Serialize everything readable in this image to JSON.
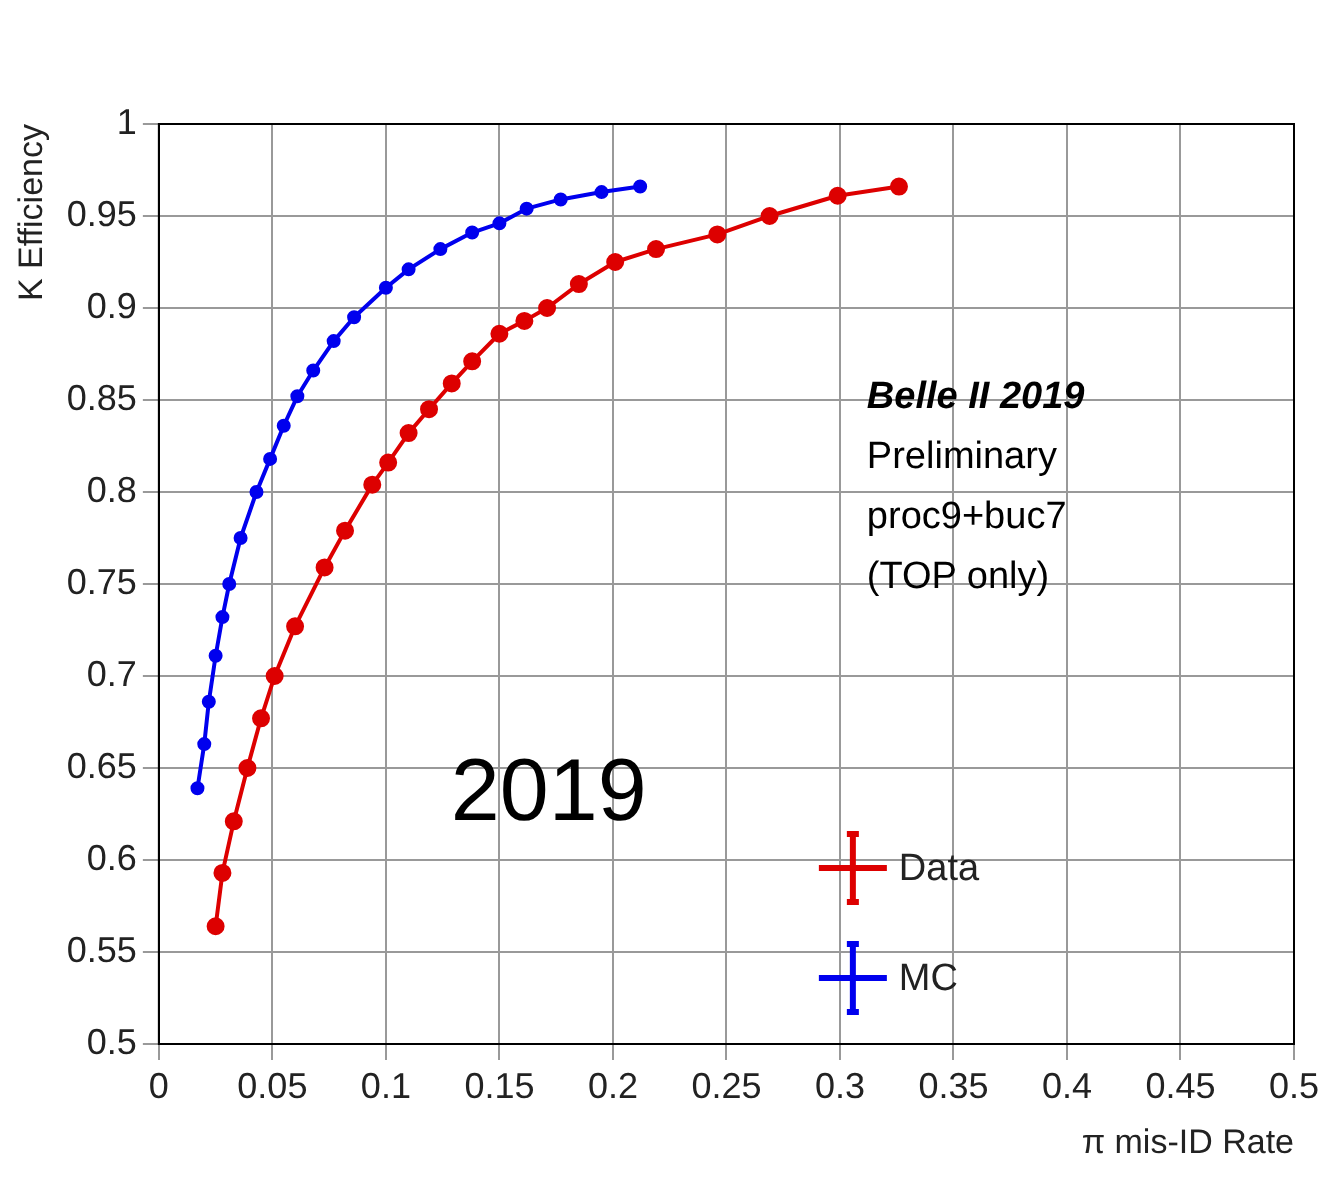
{
  "chart_data": {
    "type": "line",
    "xlabel": "π mis-ID Rate",
    "ylabel": "K Efficiency",
    "xlim": [
      0,
      0.5
    ],
    "xticks": [
      0,
      0.05,
      0.1,
      0.15,
      0.2,
      0.25,
      0.3,
      0.35,
      0.4,
      0.45,
      0.5
    ],
    "ylim": [
      0.5,
      1
    ],
    "yticks": [
      0.5,
      0.55,
      0.6,
      0.65,
      0.7,
      0.75,
      0.8,
      0.85,
      0.9,
      0.95,
      1
    ],
    "grid": true,
    "legend": "bottom right",
    "marker": "circle",
    "line_style": "solid",
    "annotations": [
      "Belle II 2019",
      "Preliminary",
      "proc9+buc7",
      "(TOP only)",
      "2019"
    ],
    "series": [
      {
        "name": "Data",
        "color": "#dd0000",
        "x": [
          0.025,
          0.028,
          0.033,
          0.039,
          0.045,
          0.051,
          0.06,
          0.073,
          0.082,
          0.094,
          0.101,
          0.11,
          0.119,
          0.129,
          0.138,
          0.15,
          0.161,
          0.171,
          0.185,
          0.201,
          0.219,
          0.246,
          0.269,
          0.299,
          0.326
        ],
        "values": [
          0.564,
          0.593,
          0.621,
          0.65,
          0.677,
          0.7,
          0.727,
          0.759,
          0.779,
          0.804,
          0.816,
          0.832,
          0.845,
          0.859,
          0.871,
          0.886,
          0.893,
          0.9,
          0.913,
          0.925,
          0.932,
          0.94,
          0.95,
          0.961,
          0.966
        ]
      },
      {
        "name": "MC",
        "color": "#0000ee",
        "x": [
          0.017,
          0.02,
          0.022,
          0.025,
          0.028,
          0.031,
          0.036,
          0.043,
          0.049,
          0.055,
          0.061,
          0.068,
          0.077,
          0.086,
          0.1,
          0.11,
          0.124,
          0.138,
          0.15,
          0.162,
          0.177,
          0.195,
          0.212
        ],
        "values": [
          0.639,
          0.663,
          0.686,
          0.711,
          0.732,
          0.75,
          0.775,
          0.8,
          0.818,
          0.836,
          0.852,
          0.866,
          0.882,
          0.895,
          0.911,
          0.921,
          0.932,
          0.941,
          0.946,
          0.954,
          0.959,
          0.963,
          0.966
        ]
      }
    ]
  }
}
